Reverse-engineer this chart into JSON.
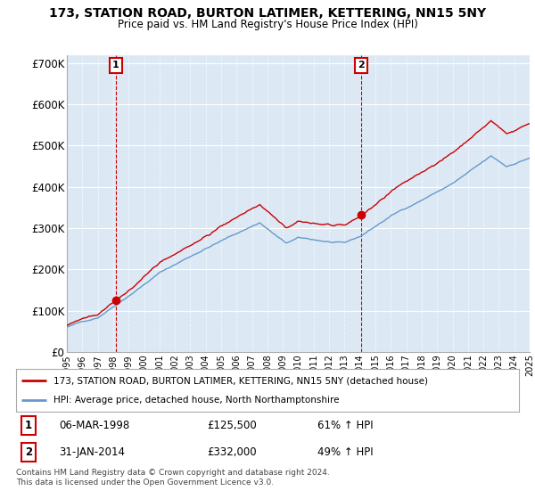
{
  "title": "173, STATION ROAD, BURTON LATIMER, KETTERING, NN15 5NY",
  "subtitle": "Price paid vs. HM Land Registry's House Price Index (HPI)",
  "red_label": "173, STATION ROAD, BURTON LATIMER, KETTERING, NN15 5NY (detached house)",
  "blue_label": "HPI: Average price, detached house, North Northamptonshire",
  "annotation1_date": "06-MAR-1998",
  "annotation1_price": "£125,500",
  "annotation1_hpi": "61% ↑ HPI",
  "annotation2_date": "31-JAN-2014",
  "annotation2_price": "£332,000",
  "annotation2_hpi": "49% ↑ HPI",
  "footer": "Contains HM Land Registry data © Crown copyright and database right 2024.\nThis data is licensed under the Open Government Licence v3.0.",
  "ylim": [
    0,
    720000
  ],
  "yticks": [
    0,
    100000,
    200000,
    300000,
    400000,
    500000,
    600000,
    700000
  ],
  "ytick_labels": [
    "£0",
    "£100K",
    "£200K",
    "£300K",
    "£400K",
    "£500K",
    "£600K",
    "£700K"
  ],
  "red_color": "#cc0000",
  "blue_color": "#6699cc",
  "chart_bg": "#dce9f5",
  "grid_color": "#ffffff",
  "sale1_year": 1998.18,
  "sale1_price": 125500,
  "sale2_year": 2014.08,
  "sale2_price": 332000,
  "xlim_start": 1995,
  "xlim_end": 2025
}
